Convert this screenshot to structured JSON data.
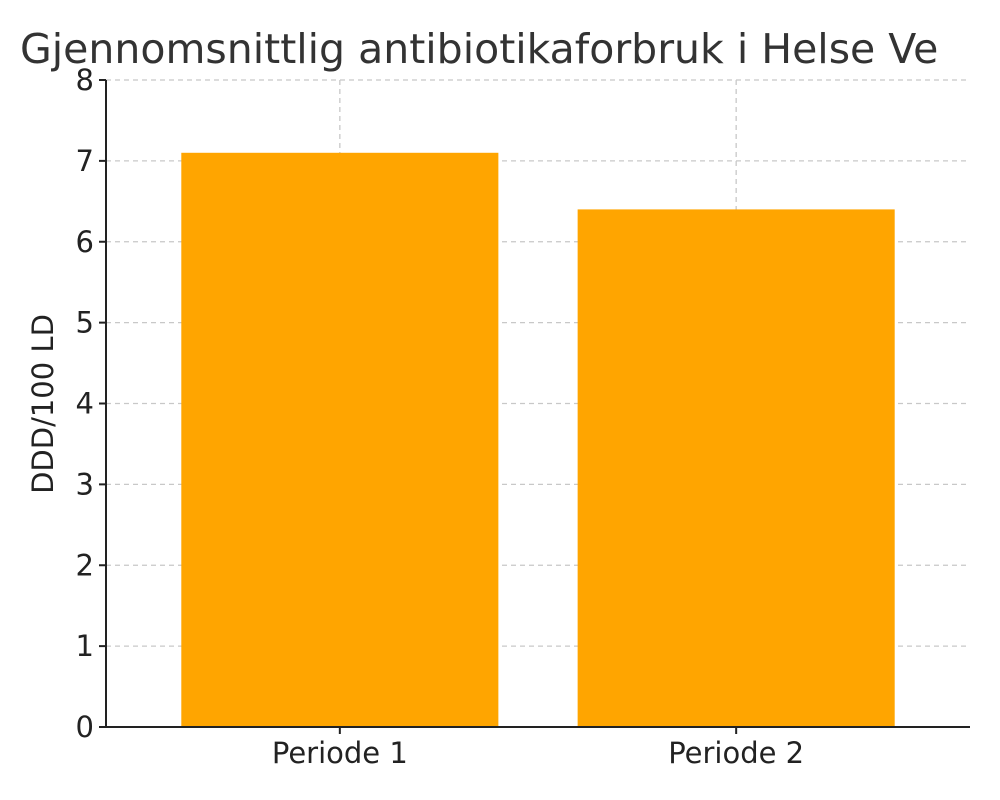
{
  "chart_data": {
    "type": "bar",
    "title": "Gjennomsnittlig antibiotikaforbruk i Helse Ve",
    "xlabel": "",
    "ylabel": "DDD/100 LD",
    "categories": [
      "Periode 1",
      "Periode 2"
    ],
    "values": [
      7.1,
      6.4
    ],
    "ylim": [
      0,
      8
    ],
    "yticks": [
      0,
      1,
      2,
      3,
      4,
      5,
      6,
      7,
      8
    ],
    "grid": true,
    "bar_color": "#ffa500",
    "legend": "none"
  }
}
